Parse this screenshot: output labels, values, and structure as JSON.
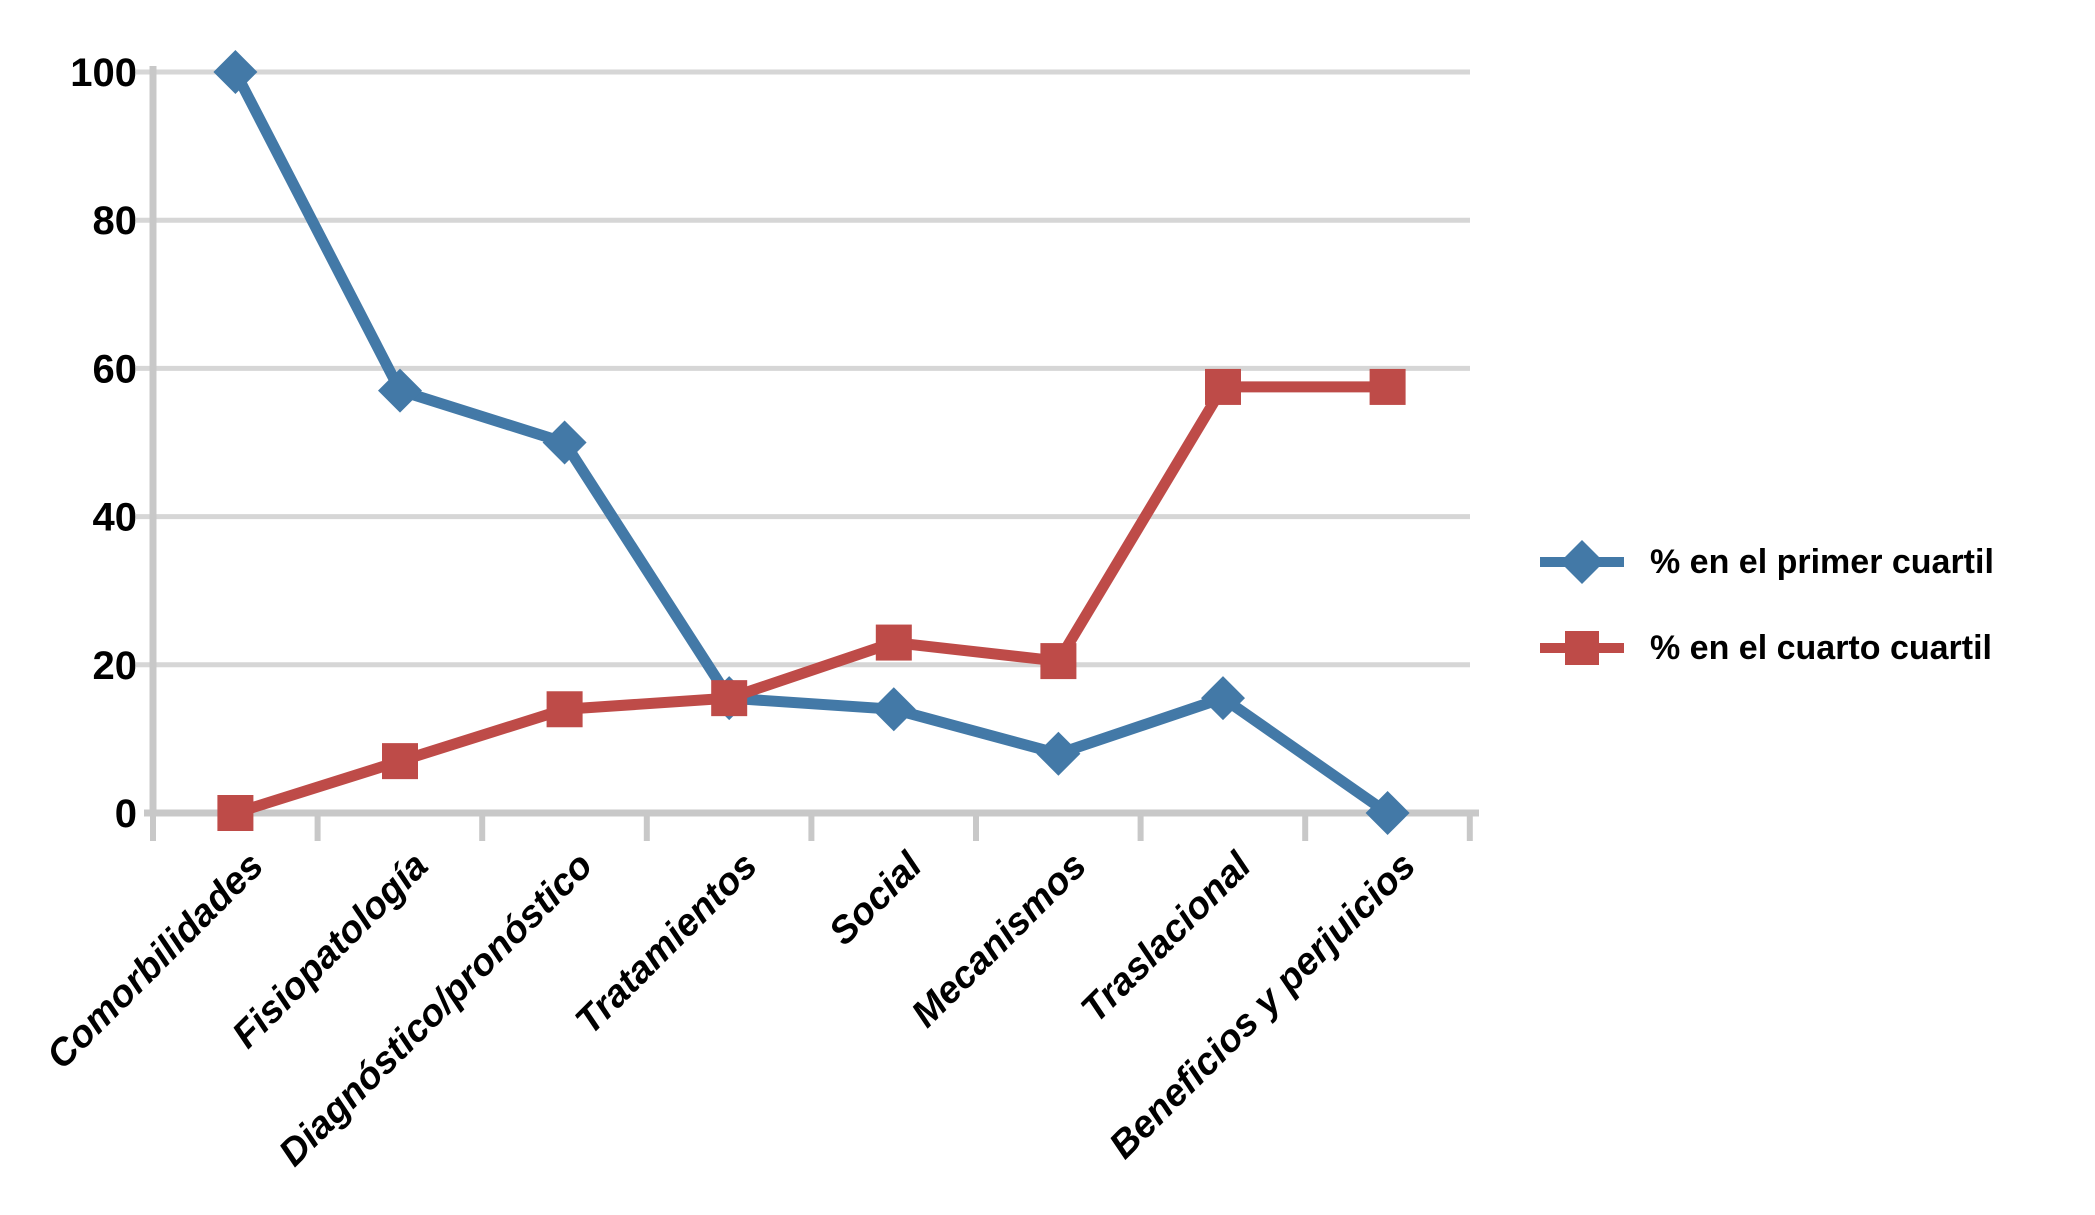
{
  "figure": {
    "background_color": "#FFFFFF",
    "text_color": "#000000"
  },
  "chart_data": {
    "type": "line",
    "categories": [
      "Comorbilidades",
      "Fisiopatología",
      "Diagnóstico/pronóstico",
      "Tratamientos",
      "Social",
      "Mecanismos",
      "Traslacional",
      "Beneficios y perjuicios"
    ],
    "series": [
      {
        "name": "% en el primer cuartil",
        "marker": "diamond",
        "color": "#4379A7",
        "values": [
          100,
          57,
          50,
          15.5,
          14,
          8,
          15.5,
          0
        ]
      },
      {
        "name": "% en el cuarto cuartil",
        "marker": "square",
        "color": "#BE4B48",
        "values": [
          0,
          7,
          14,
          15.5,
          23,
          20.5,
          57.5,
          57.5
        ]
      }
    ],
    "title": "",
    "xlabel": "",
    "ylabel": "",
    "ylim": [
      0,
      100
    ],
    "yticks": [
      0,
      20,
      40,
      60,
      80,
      100
    ],
    "grid": "horizontal",
    "gridline_color": "#D6D6D6",
    "axis_color": "#C8C8C8",
    "legend_position": "right",
    "x_label_rotation_deg": 45
  }
}
